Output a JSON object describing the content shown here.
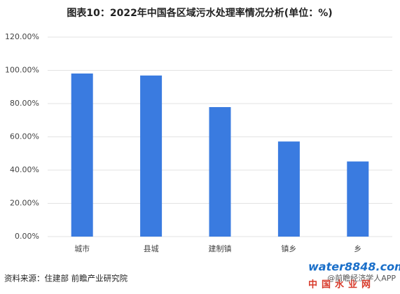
{
  "chart_data": {
    "type": "bar",
    "title": "图表10：2022年中国各区域污水处理率情况分析(单位：%)",
    "categories": [
      "城市",
      "县城",
      "建制镇",
      "镇乡",
      "乡"
    ],
    "values": [
      98.1,
      96.9,
      77.9,
      57.2,
      45.2
    ],
    "color": "#3a7be0",
    "ylim": [
      0,
      120
    ],
    "yticks": [
      {
        "value": 0,
        "label": "0.00%"
      },
      {
        "value": 20,
        "label": "20.00%"
      },
      {
        "value": 40,
        "label": "40.00%"
      },
      {
        "value": 60,
        "label": "60.00%"
      },
      {
        "value": 80,
        "label": "80.00%"
      },
      {
        "value": 100,
        "label": "100.00%"
      },
      {
        "value": 120,
        "label": "120.00%"
      }
    ],
    "grid": true,
    "source": "资料来源：住建部 前瞻产业研究院",
    "credit": "@前瞻经济学人APP",
    "logo": "water8848.com",
    "logo_sub": "中国水业网"
  }
}
